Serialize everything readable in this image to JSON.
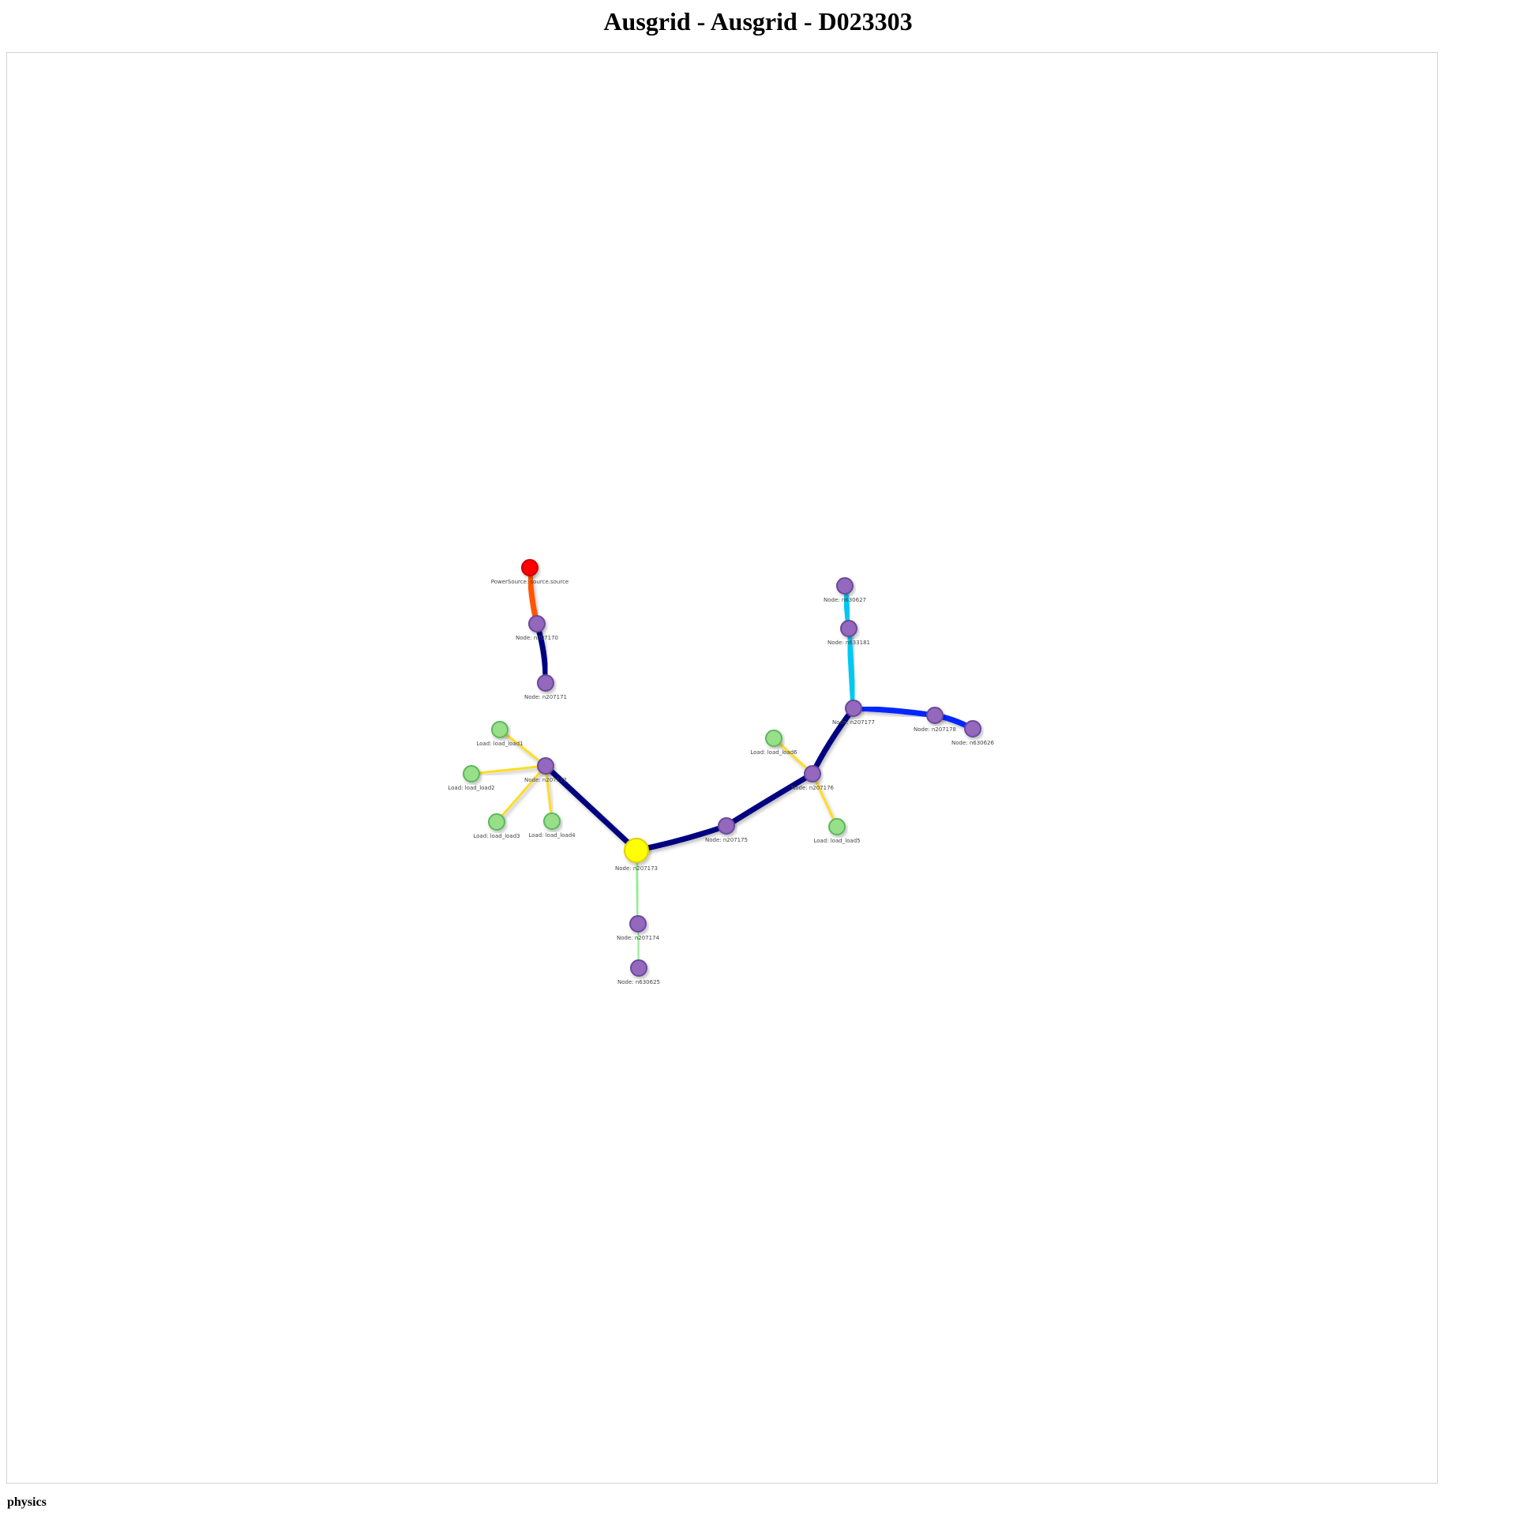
{
  "title": "Ausgrid - Ausgrid - D023303",
  "physics_label": "physics",
  "colors": {
    "node_fill": "#9467bd",
    "node_stroke": "#6a4a9c",
    "load_fill": "#98df8a",
    "load_stroke": "#5cb85c",
    "source_fill": "#ff0000",
    "highlight_fill": "#ffff00",
    "edge_navy": "#000080",
    "edge_blue": "#0026ff",
    "edge_cyan": "#00c8f0",
    "edge_orange": "#ff5500",
    "edge_yellow": "#ffdd22",
    "edge_lightgreen": "#90ee90"
  },
  "nodes": [
    {
      "id": "source",
      "label": "PowerSource: source.source",
      "kind": "source"
    },
    {
      "id": "n207170",
      "label": "Node: n207170",
      "kind": "node"
    },
    {
      "id": "n207171",
      "label": "Node: n207171",
      "kind": "node"
    },
    {
      "id": "n207172",
      "label": "Node: n207172",
      "kind": "node"
    },
    {
      "id": "load1",
      "label": "Load: load_load1",
      "kind": "load"
    },
    {
      "id": "load2",
      "label": "Load: load_load2",
      "kind": "load"
    },
    {
      "id": "load3",
      "label": "Load: load_load3",
      "kind": "load"
    },
    {
      "id": "load4",
      "label": "Load: load_load4",
      "kind": "load"
    },
    {
      "id": "n207173",
      "label": "Node: n207173",
      "kind": "highlight"
    },
    {
      "id": "n207174",
      "label": "Node: n207174",
      "kind": "node"
    },
    {
      "id": "n630625",
      "label": "Node: n630625",
      "kind": "node"
    },
    {
      "id": "n207175",
      "label": "Node: n207175",
      "kind": "node"
    },
    {
      "id": "n207176",
      "label": "Node: n207176",
      "kind": "node"
    },
    {
      "id": "load6",
      "label": "Load: load_load6",
      "kind": "load"
    },
    {
      "id": "load5",
      "label": "Load: load_load5",
      "kind": "load"
    },
    {
      "id": "n207177",
      "label": "Node: n207177",
      "kind": "node"
    },
    {
      "id": "n633181",
      "label": "Node: n633181",
      "kind": "node"
    },
    {
      "id": "n630627",
      "label": "Node: n630627",
      "kind": "node"
    },
    {
      "id": "n207178",
      "label": "Node: n207178",
      "kind": "node"
    },
    {
      "id": "n630626",
      "label": "Node: n630626",
      "kind": "node"
    }
  ],
  "edges": [
    {
      "from": "source",
      "to": "n207170",
      "color": "edge_orange",
      "weight": "heavy"
    },
    {
      "from": "n207170",
      "to": "n207171",
      "color": "edge_navy",
      "weight": "heavy"
    },
    {
      "from": "n207171",
      "to": "n207172",
      "color": "edge_navy",
      "weight": "heavy"
    },
    {
      "from": "n207172",
      "to": "load1",
      "color": "edge_yellow",
      "weight": "light"
    },
    {
      "from": "n207172",
      "to": "load2",
      "color": "edge_yellow",
      "weight": "light"
    },
    {
      "from": "n207172",
      "to": "load3",
      "color": "edge_yellow",
      "weight": "light"
    },
    {
      "from": "n207172",
      "to": "load4",
      "color": "edge_yellow",
      "weight": "light"
    },
    {
      "from": "n207172",
      "to": "n207173",
      "color": "edge_navy",
      "weight": "heavy"
    },
    {
      "from": "n207173",
      "to": "n207174",
      "color": "edge_lightgreen",
      "weight": "light"
    },
    {
      "from": "n207174",
      "to": "n630625",
      "color": "edge_lightgreen",
      "weight": "light"
    },
    {
      "from": "n207173",
      "to": "n207175",
      "color": "edge_navy",
      "weight": "heavy"
    },
    {
      "from": "n207175",
      "to": "n207176",
      "color": "edge_navy",
      "weight": "heavy"
    },
    {
      "from": "n207176",
      "to": "load6",
      "color": "edge_yellow",
      "weight": "light"
    },
    {
      "from": "n207176",
      "to": "load5",
      "color": "edge_yellow",
      "weight": "light"
    },
    {
      "from": "n207176",
      "to": "n207177",
      "color": "edge_navy",
      "weight": "heavy"
    },
    {
      "from": "n207177",
      "to": "n633181",
      "color": "edge_cyan",
      "weight": "heavy"
    },
    {
      "from": "n633181",
      "to": "n630627",
      "color": "edge_cyan",
      "weight": "heavy"
    },
    {
      "from": "n207177",
      "to": "n207178",
      "color": "edge_blue",
      "weight": "heavy"
    },
    {
      "from": "n207178",
      "to": "n630626",
      "color": "edge_blue",
      "weight": "heavy"
    }
  ]
}
